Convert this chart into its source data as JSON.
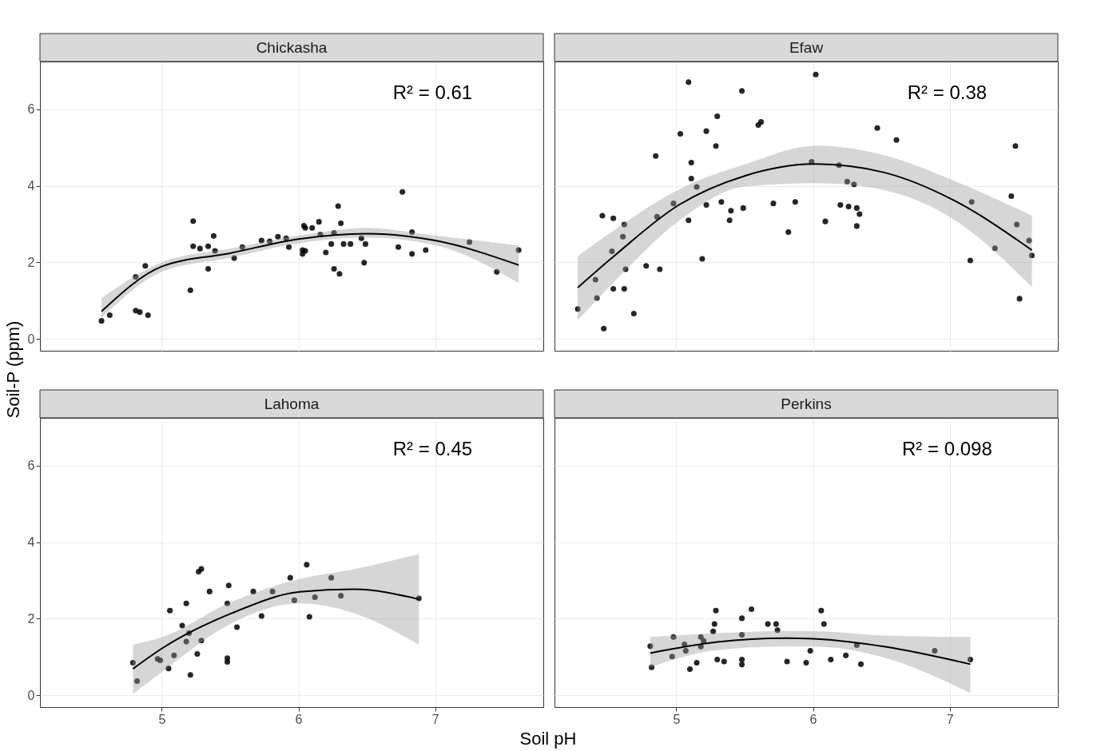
{
  "chart_data": [
    {
      "type": "scatter",
      "title": "Chickasha",
      "ylabel": "Soil-P (ppm)",
      "annotations": [
        "R² = 0.61"
      ],
      "xlim": [
        4.11,
        7.79
      ],
      "ylim": [
        -0.31,
        7.25
      ],
      "xticks": [
        5,
        6,
        7
      ],
      "yticks": [
        0,
        2,
        4,
        6
      ],
      "grid": true,
      "tick_labels": "y",
      "series": [
        {
          "marker": "circle",
          "color": "#000000",
          "x": [
            4.56,
            4.62,
            4.81,
            4.81,
            4.84,
            4.88,
            4.9,
            5.21,
            5.23,
            5.23,
            5.28,
            5.34,
            5.38,
            5.34,
            5.39,
            5.53,
            5.59,
            5.73,
            5.79,
            5.85,
            5.91,
            5.93,
            6.03,
            6.05,
            6.03,
            6.04,
            6.05,
            6.1,
            6.15,
            6.16,
            6.2,
            6.24,
            6.26,
            6.29,
            6.31,
            6.26,
            6.3,
            6.38,
            6.46,
            6.48,
            6.73,
            6.76,
            6.83,
            6.83,
            6.93,
            7.25,
            7.45,
            7.61,
            6.33,
            6.49
          ],
          "values": [
            0.47,
            0.62,
            1.62,
            0.74,
            0.7,
            1.91,
            0.62,
            1.27,
            3.08,
            2.42,
            2.36,
            2.42,
            2.69,
            1.83,
            2.3,
            2.11,
            2.4,
            2.57,
            2.55,
            2.67,
            2.63,
            2.4,
            2.22,
            2.3,
            2.32,
            2.96,
            2.9,
            2.9,
            3.06,
            2.73,
            2.26,
            2.48,
            2.77,
            3.47,
            3.02,
            1.83,
            1.7,
            2.48,
            2.63,
            1.99,
            2.4,
            3.84,
            2.79,
            2.22,
            2.32,
            2.53,
            1.75,
            2.32,
            2.48,
            2.48
          ]
        },
        {
          "type": "line",
          "color": "#000000",
          "x": [
            4.56,
            5.0,
            5.5,
            6.0,
            6.5,
            7.0,
            7.61
          ],
          "values": [
            0.72,
            1.89,
            2.24,
            2.61,
            2.75,
            2.57,
            1.93
          ],
          "lower": [
            0.55,
            1.75,
            2.12,
            2.5,
            2.65,
            2.45,
            1.46
          ],
          "upper": [
            1.07,
            2.0,
            2.36,
            2.7,
            2.9,
            2.7,
            2.44
          ]
        }
      ]
    },
    {
      "type": "scatter",
      "title": "Efaw",
      "annotations": [
        "R² = 0.38"
      ],
      "xlim": [
        4.11,
        7.79
      ],
      "ylim": [
        -0.31,
        7.25
      ],
      "xticks": [
        5,
        6,
        7
      ],
      "yticks": [
        0,
        2,
        4,
        6
      ],
      "grid": true,
      "tick_labels": false,
      "series": [
        {
          "marker": "circle",
          "color": "#000000",
          "x": [
            4.28,
            4.41,
            4.42,
            4.47,
            4.46,
            4.54,
            4.53,
            4.54,
            4.62,
            4.61,
            4.63,
            4.62,
            4.69,
            4.78,
            4.85,
            4.86,
            4.88,
            4.98,
            5.03,
            5.09,
            5.11,
            5.11,
            5.09,
            5.15,
            5.19,
            5.22,
            5.22,
            5.29,
            5.3,
            5.33,
            5.4,
            5.39,
            5.48,
            5.49,
            5.6,
            5.62,
            5.71,
            5.82,
            5.87,
            5.99,
            6.02,
            6.09,
            6.19,
            6.2,
            6.25,
            6.26,
            6.3,
            6.32,
            6.34,
            6.32,
            6.47,
            6.61,
            7.15,
            7.16,
            7.33,
            7.45,
            7.48,
            7.49,
            7.51,
            7.58,
            7.6
          ],
          "values": [
            0.78,
            1.55,
            1.07,
            0.27,
            3.22,
            3.15,
            2.29,
            1.31,
            2.99,
            2.67,
            1.82,
            1.31,
            0.66,
            1.91,
            4.78,
            3.19,
            1.82,
            3.54,
            5.36,
            6.71,
            4.61,
            4.19,
            3.1,
            3.97,
            2.09,
            5.43,
            3.5,
            5.04,
            5.82,
            3.58,
            3.35,
            3.1,
            6.48,
            3.42,
            5.59,
            5.67,
            3.54,
            2.79,
            3.58,
            4.63,
            6.91,
            3.07,
            4.54,
            3.5,
            4.11,
            3.46,
            4.04,
            3.42,
            3.26,
            2.95,
            5.51,
            5.2,
            2.05,
            3.58,
            2.37,
            3.73,
            5.04,
            2.99,
            1.05,
            2.57,
            2.18
          ]
        },
        {
          "type": "line",
          "color": "#000000",
          "x": [
            4.28,
            4.57,
            5.01,
            5.5,
            6.02,
            6.52,
            7.02,
            7.6
          ],
          "values": [
            1.34,
            2.24,
            3.48,
            4.26,
            4.57,
            4.35,
            3.64,
            2.32
          ],
          "lower": [
            0.49,
            1.58,
            3.06,
            3.98,
            4.07,
            3.89,
            3.14,
            1.36
          ],
          "upper": [
            2.16,
            2.9,
            3.89,
            4.56,
            5.05,
            4.8,
            4.15,
            3.22
          ]
        }
      ]
    },
    {
      "type": "scatter",
      "title": "Lahoma",
      "xlabel": "Soil pH",
      "annotations": [
        "R² = 0.45"
      ],
      "xlim": [
        4.11,
        7.79
      ],
      "ylim": [
        -0.31,
        7.25
      ],
      "xticks": [
        5,
        6,
        7
      ],
      "yticks": [
        0,
        2,
        4,
        6
      ],
      "grid": true,
      "series": [
        {
          "marker": "circle",
          "color": "#000000",
          "x": [
            4.79,
            4.82,
            4.97,
            4.99,
            5.05,
            5.06,
            5.09,
            5.15,
            5.18,
            5.18,
            5.2,
            5.21,
            5.26,
            5.27,
            5.29,
            5.29,
            5.35,
            5.48,
            5.48,
            5.48,
            5.49,
            5.55,
            5.67,
            5.73,
            5.81,
            5.94,
            5.97,
            6.06,
            6.08,
            6.12,
            6.24,
            6.31,
            6.88
          ],
          "values": [
            0.85,
            0.37,
            0.95,
            0.91,
            0.7,
            2.21,
            1.04,
            1.82,
            2.4,
            1.4,
            1.62,
            0.53,
            1.08,
            3.23,
            3.3,
            1.43,
            2.71,
            0.97,
            0.87,
            2.4,
            2.87,
            1.78,
            2.71,
            2.07,
            2.71,
            3.07,
            2.48,
            3.41,
            2.05,
            2.56,
            3.07,
            2.6,
            2.53
          ]
        },
        {
          "type": "line",
          "color": "#000000",
          "x": [
            4.79,
            5.01,
            5.51,
            6.01,
            6.41,
            6.88
          ],
          "values": [
            0.69,
            1.24,
            2.14,
            2.7,
            2.77,
            2.51
          ],
          "lower": [
            0.03,
            0.63,
            1.88,
            2.4,
            2.14,
            1.32
          ],
          "upper": [
            1.32,
            1.53,
            2.44,
            3.04,
            3.3,
            3.69
          ]
        }
      ]
    },
    {
      "type": "scatter",
      "title": "Perkins",
      "annotations": [
        "R² = 0.098"
      ],
      "xlim": [
        4.11,
        7.79
      ],
      "ylim": [
        -0.31,
        7.25
      ],
      "xticks": [
        5,
        6,
        7
      ],
      "yticks": [
        0,
        2,
        4,
        6
      ],
      "grid": true,
      "tick_labels": "x",
      "series": [
        {
          "marker": "circle",
          "color": "#000000",
          "x": [
            4.81,
            4.82,
            4.97,
            4.98,
            5.06,
            5.07,
            5.1,
            5.15,
            5.18,
            5.18,
            5.2,
            5.27,
            5.28,
            5.29,
            5.3,
            5.35,
            5.48,
            5.48,
            5.48,
            5.48,
            5.55,
            5.67,
            5.73,
            5.74,
            5.81,
            5.95,
            5.98,
            6.06,
            6.08,
            6.13,
            6.24,
            6.32,
            6.35,
            6.89,
            7.15
          ],
          "values": [
            1.28,
            0.73,
            1.01,
            1.52,
            1.33,
            1.16,
            0.68,
            0.85,
            1.52,
            1.27,
            1.42,
            1.67,
            1.86,
            2.21,
            0.93,
            0.88,
            2.01,
            1.58,
            0.93,
            0.8,
            2.25,
            1.86,
            1.86,
            1.7,
            0.88,
            0.85,
            1.16,
            2.21,
            1.86,
            0.93,
            1.04,
            1.31,
            0.81,
            1.16,
            0.93
          ]
        },
        {
          "type": "line",
          "color": "#000000",
          "x": [
            4.81,
            5.3,
            5.8,
            6.07,
            6.52,
            7.15
          ],
          "values": [
            1.1,
            1.39,
            1.49,
            1.46,
            1.27,
            0.81
          ],
          "lower": [
            0.73,
            1.18,
            1.27,
            1.26,
            0.98,
            0.06
          ],
          "upper": [
            1.52,
            1.62,
            1.68,
            1.67,
            1.56,
            1.52
          ]
        }
      ]
    }
  ]
}
